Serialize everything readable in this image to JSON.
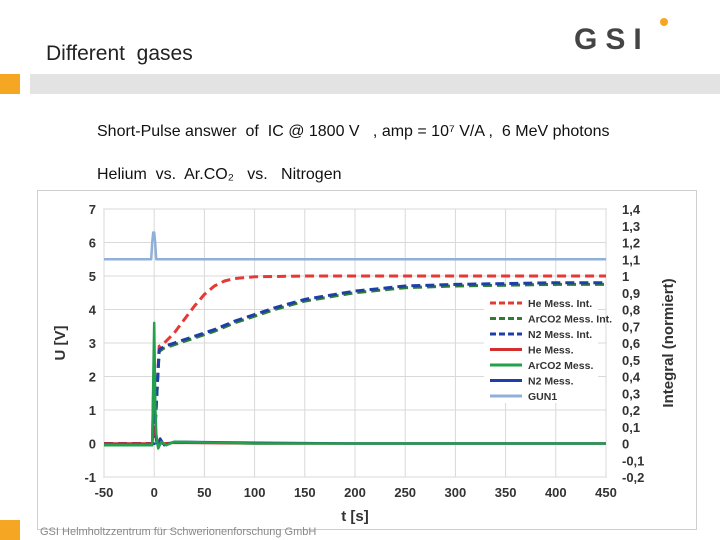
{
  "slide": {
    "title": "Different  gases",
    "logo_text": "GSI",
    "subtitle_line1": "Short-Pulse answer  of  IC @ 1800 V   , amp = 10⁷ V/A ,  6 MeV photons",
    "subtitle_line2": "Helium  vs.  Ar.CO₂   vs.   Nitrogen",
    "footer": "GSI Helmholtzzentrum für Schwerionenforschung GmbH",
    "colors": {
      "accent": "#f5a623",
      "header_bar": "#e3e3e3"
    }
  },
  "chart_data": {
    "type": "line",
    "title": "",
    "xlabel": "t [s]",
    "ylabel": "U [V]",
    "y2label": "Integral (normiert)",
    "xlim": [
      -50,
      450
    ],
    "ylim": [
      -1,
      7
    ],
    "y2lim": [
      -0.2,
      1.4
    ],
    "x_ticks": [
      "-50",
      "0",
      "50",
      "100",
      "150",
      "200",
      "250",
      "300",
      "350",
      "400",
      "450"
    ],
    "y_ticks": [
      "-1",
      "0",
      "1",
      "2",
      "3",
      "4",
      "5",
      "6",
      "7"
    ],
    "y2_ticks": [
      "-0,2",
      "-0,1",
      "0",
      "0,1",
      "0,2",
      "0,3",
      "0,4",
      "0,5",
      "0,6",
      "0,7",
      "0,8",
      "0,9",
      "1",
      "1,1",
      "1,2",
      "1,3",
      "1,4"
    ],
    "grid": true,
    "legend_position": "right",
    "series": [
      {
        "name": "He Mess. Int.",
        "color": "#e53935",
        "style": "dashed",
        "axis": "right",
        "x": [
          -50,
          0,
          5,
          10,
          20,
          30,
          40,
          50,
          60,
          70,
          80,
          100,
          150,
          200,
          300,
          400,
          450
        ],
        "y": [
          0,
          0,
          0.58,
          0.6,
          0.66,
          0.74,
          0.82,
          0.89,
          0.94,
          0.97,
          0.985,
          0.995,
          1.0,
          1.0,
          1.0,
          1.0,
          1.0
        ]
      },
      {
        "name": "ArCO2 Mess. Int.",
        "color": "#2e7d32",
        "style": "dashed",
        "axis": "right",
        "x": [
          -50,
          0,
          5,
          10,
          20,
          40,
          60,
          80,
          100,
          120,
          150,
          200,
          250,
          300,
          400,
          450
        ],
        "y": [
          0,
          0,
          0.55,
          0.57,
          0.59,
          0.63,
          0.67,
          0.72,
          0.76,
          0.8,
          0.85,
          0.9,
          0.93,
          0.94,
          0.95,
          0.95
        ]
      },
      {
        "name": "N2 Mess. Int.",
        "color": "#1e3fa8",
        "style": "dashed",
        "axis": "right",
        "x": [
          -50,
          0,
          5,
          10,
          20,
          40,
          60,
          80,
          100,
          120,
          150,
          200,
          250,
          300,
          400,
          450
        ],
        "y": [
          0,
          0,
          0.56,
          0.58,
          0.6,
          0.64,
          0.68,
          0.73,
          0.77,
          0.81,
          0.86,
          0.91,
          0.94,
          0.95,
          0.96,
          0.96
        ]
      },
      {
        "name": "He Mess.",
        "color": "#d32f2f",
        "style": "solid",
        "axis": "left",
        "x": [
          -50,
          -2,
          0,
          2,
          4,
          8,
          20,
          100,
          200,
          300,
          400,
          450
        ],
        "y": [
          0.0,
          0.0,
          0.5,
          0.2,
          0.05,
          0.0,
          0.02,
          0.0,
          0.0,
          0.0,
          0.0,
          0.0
        ]
      },
      {
        "name": "ArCO2 Mess.",
        "color": "#22a04a",
        "style": "solid",
        "axis": "left",
        "x": [
          -50,
          -2,
          0,
          1,
          2,
          4,
          7,
          12,
          20,
          100,
          200,
          300,
          400,
          450
        ],
        "y": [
          -0.05,
          -0.05,
          3.6,
          1.2,
          0.3,
          -0.15,
          0.05,
          -0.05,
          0.05,
          0.0,
          0.0,
          0.0,
          0.0,
          0.0
        ]
      },
      {
        "name": "N2 Mess.",
        "color": "#1e3fa8",
        "style": "solid",
        "axis": "left",
        "x": [
          -50,
          -2,
          0,
          1,
          2,
          4,
          6,
          10,
          20,
          100,
          200,
          300,
          400,
          450
        ],
        "y": [
          -0.05,
          -0.05,
          2.9,
          1.0,
          0.1,
          -0.1,
          0.15,
          -0.05,
          0.05,
          0.02,
          0.0,
          0.0,
          0.0,
          0.0
        ]
      },
      {
        "name": "GUN1",
        "color": "#8fb0d8",
        "style": "solid",
        "axis": "left",
        "x": [
          -50,
          -3,
          -2,
          -1,
          0,
          1,
          2,
          3,
          450
        ],
        "y": [
          5.5,
          5.5,
          6.0,
          6.3,
          6.3,
          6.0,
          5.5,
          5.5,
          5.5
        ]
      }
    ]
  }
}
